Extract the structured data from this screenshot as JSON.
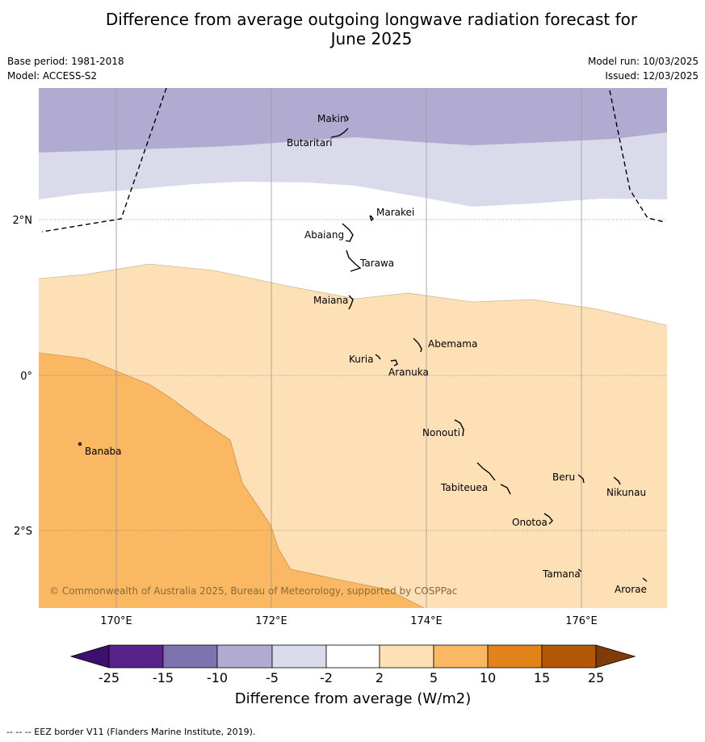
{
  "title_line1": "Difference from average outgoing longwave radiation forecast for",
  "title_line2": "June 2025",
  "base_period": "Base period: 1981-2018",
  "model": "Model: ACCESS-S2",
  "model_run": "Model run: 10/03/2025",
  "issued": "Issued: 12/03/2025",
  "copyright": "© Commonwealth of Australia 2025, Bureau of Meteorology, supported by COSPPac",
  "footer": "--  --  -- EEZ border V11 (Flanders Marine Institute, 2019).",
  "lon_labels": [
    "170°E",
    "172°E",
    "174°E",
    "176°E"
  ],
  "lat_labels": [
    "2°N",
    "0°",
    "2°S"
  ],
  "islands": [
    "Makin",
    "Butaritari",
    "Marakei",
    "Abaiang",
    "Tarawa",
    "Maiana",
    "Abemama",
    "Kuria",
    "Aranuka",
    "Nonouti",
    "Banaba",
    "Beru",
    "Nikunau",
    "Tabiteuea",
    "Onotoa",
    "Tamana",
    "Arorae"
  ],
  "colorbar": {
    "title": "Difference from average (W/m2)",
    "ticks": [
      "-25",
      "-15",
      "-10",
      "-5",
      "-2",
      "2",
      "5",
      "10",
      "15",
      "25"
    ],
    "colors": [
      "#3f0f6e",
      "#57228a",
      "#7e73ad",
      "#b1abd2",
      "#d9dbeb",
      "#ffffff",
      "#fde0b6",
      "#fbb862",
      "#e1821a",
      "#b35806",
      "#7f3b08"
    ]
  }
}
